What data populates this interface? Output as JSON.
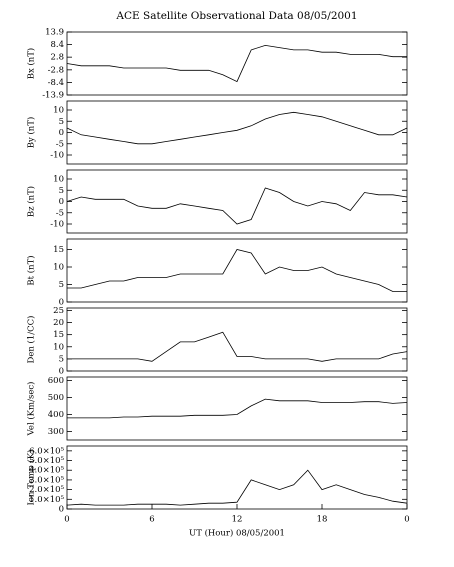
{
  "chart_data": [
    {
      "type": "line",
      "title": "ACE Satellite Observational Data  08/05/2001",
      "ylabel": "Bx (nT)",
      "x": [
        0,
        1,
        2,
        3,
        4,
        5,
        6,
        7,
        8,
        9,
        10,
        11,
        12,
        13,
        14,
        15,
        16,
        17,
        18,
        19,
        20,
        21,
        22,
        23,
        24
      ],
      "values": [
        0,
        -1,
        -1,
        -1,
        -2,
        -2,
        -2,
        -2,
        -3,
        -3,
        -3,
        -5,
        -8,
        6,
        8,
        7,
        6,
        6,
        5,
        5,
        4,
        4,
        4,
        3,
        3
      ],
      "xlim": [
        0,
        24
      ],
      "ylim": [
        -13.9,
        13.9
      ],
      "yticks": [
        -13.9,
        -8.4,
        -2.8,
        2.8,
        8.4,
        13.9
      ],
      "color": "#000000"
    },
    {
      "type": "line",
      "ylabel": "By (nT)",
      "x": [
        0,
        1,
        2,
        3,
        4,
        5,
        6,
        7,
        8,
        9,
        10,
        11,
        12,
        13,
        14,
        15,
        16,
        17,
        18,
        19,
        20,
        21,
        22,
        23,
        24
      ],
      "values": [
        2,
        -1,
        -2,
        -3,
        -4,
        -5,
        -5,
        -4,
        -3,
        -2,
        -1,
        0,
        1,
        3,
        6,
        8,
        9,
        8,
        7,
        5,
        3,
        1,
        -1,
        -1,
        2
      ],
      "xlim": [
        0,
        24
      ],
      "ylim": [
        -14,
        14
      ],
      "yticks": [
        -10,
        -5,
        0,
        5,
        10
      ],
      "color": "#000000"
    },
    {
      "type": "line",
      "ylabel": "Bz (nT)",
      "x": [
        0,
        1,
        2,
        3,
        4,
        5,
        6,
        7,
        8,
        9,
        10,
        11,
        12,
        13,
        14,
        15,
        16,
        17,
        18,
        19,
        20,
        21,
        22,
        23,
        24
      ],
      "values": [
        0,
        2,
        1,
        1,
        1,
        -2,
        -3,
        -3,
        -1,
        -2,
        -3,
        -4,
        -10,
        -8,
        6,
        4,
        0,
        -2,
        0,
        -1,
        -4,
        4,
        3,
        3,
        2
      ],
      "xlim": [
        0,
        24
      ],
      "ylim": [
        -14,
        14
      ],
      "yticks": [
        -10,
        -5,
        0,
        5,
        10
      ],
      "color": "#000000"
    },
    {
      "type": "line",
      "ylabel": "Bt (nT)",
      "x": [
        0,
        1,
        2,
        3,
        4,
        5,
        6,
        7,
        8,
        9,
        10,
        11,
        12,
        13,
        14,
        15,
        16,
        17,
        18,
        19,
        20,
        21,
        22,
        23,
        24
      ],
      "values": [
        4,
        4,
        5,
        6,
        6,
        7,
        7,
        7,
        8,
        8,
        8,
        8,
        15,
        14,
        8,
        10,
        9,
        9,
        10,
        8,
        7,
        6,
        5,
        3,
        3
      ],
      "xlim": [
        0,
        24
      ],
      "ylim": [
        0,
        18
      ],
      "yticks": [
        0,
        5,
        10,
        15
      ],
      "color": "#000000"
    },
    {
      "type": "line",
      "ylabel": "Den (1/CC)",
      "x": [
        0,
        1,
        2,
        3,
        4,
        5,
        6,
        7,
        8,
        9,
        10,
        11,
        12,
        13,
        14,
        15,
        16,
        17,
        18,
        19,
        20,
        21,
        22,
        23,
        24
      ],
      "values": [
        5,
        5,
        5,
        5,
        5,
        5,
        4,
        8,
        12,
        12,
        14,
        16,
        6,
        6,
        5,
        5,
        5,
        5,
        4,
        5,
        5,
        5,
        5,
        7,
        8
      ],
      "xlim": [
        0,
        24
      ],
      "ylim": [
        0,
        26
      ],
      "yticks": [
        0,
        5,
        10,
        15,
        20,
        25
      ],
      "color": "#000000"
    },
    {
      "type": "line",
      "ylabel": "Vel (Km/sec)",
      "x": [
        0,
        1,
        2,
        3,
        4,
        5,
        6,
        7,
        8,
        9,
        10,
        11,
        12,
        13,
        14,
        15,
        16,
        17,
        18,
        19,
        20,
        21,
        22,
        23,
        24
      ],
      "values": [
        380,
        380,
        380,
        380,
        385,
        385,
        390,
        390,
        390,
        395,
        395,
        395,
        400,
        450,
        490,
        480,
        480,
        480,
        470,
        470,
        470,
        475,
        475,
        465,
        470
      ],
      "xlim": [
        0,
        24
      ],
      "ylim": [
        250,
        620
      ],
      "yticks": [
        300,
        400,
        500,
        600
      ],
      "color": "#000000"
    },
    {
      "type": "line",
      "ylabel": "Ion Temp (K)",
      "xlabel": "UT (Hour)  08/05/2001",
      "x": [
        0,
        1,
        2,
        3,
        4,
        5,
        6,
        7,
        8,
        9,
        10,
        11,
        12,
        13,
        14,
        15,
        16,
        17,
        18,
        19,
        20,
        21,
        22,
        23,
        24
      ],
      "values": [
        40000,
        50000,
        40000,
        40000,
        40000,
        50000,
        50000,
        50000,
        40000,
        50000,
        60000,
        60000,
        70000,
        300000,
        250000,
        200000,
        250000,
        400000,
        200000,
        250000,
        200000,
        150000,
        120000,
        80000,
        60000
      ],
      "xlim": [
        0,
        24
      ],
      "ylim": [
        0,
        650000
      ],
      "yticks": [
        0,
        {
          "value": 100000,
          "label": "1.0×10⁵"
        },
        {
          "value": 200000,
          "label": "2.0×10⁵"
        },
        {
          "value": 300000,
          "label": "3.0×10⁵"
        },
        {
          "value": 400000,
          "label": "4.0×10⁵"
        },
        {
          "value": 500000,
          "label": "5.0×10⁵"
        },
        {
          "value": 600000,
          "label": "6.0×10⁵"
        }
      ],
      "xticks": [
        0,
        6,
        12,
        18,
        {
          "value": 24,
          "label": "0"
        }
      ],
      "color": "#000000"
    }
  ]
}
